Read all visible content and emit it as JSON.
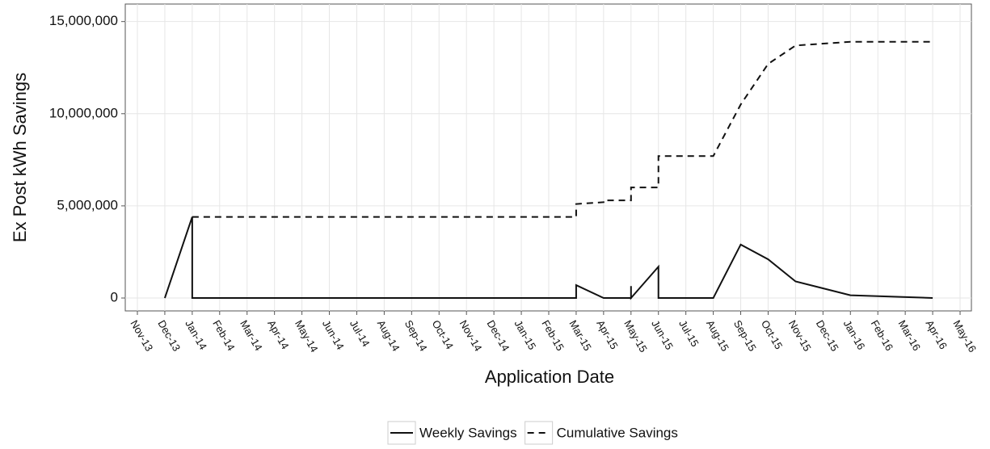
{
  "chart_data": {
    "type": "line",
    "xlabel": "Application Date",
    "ylabel": "Ex Post kWh Savings",
    "grid": true,
    "legend": "bottom",
    "xlim": [
      "2013-11",
      "2016-05"
    ],
    "xticks": [
      {
        "value": "2013-11",
        "label": "Nov-13"
      },
      {
        "value": "2013-12",
        "label": "Dec-13"
      },
      {
        "value": "2014-01",
        "label": "Jan-14"
      },
      {
        "value": "2014-02",
        "label": "Feb-14"
      },
      {
        "value": "2014-03",
        "label": "Mar-14"
      },
      {
        "value": "2014-04",
        "label": "Apr-14"
      },
      {
        "value": "2014-05",
        "label": "May-14"
      },
      {
        "value": "2014-06",
        "label": "Jun-14"
      },
      {
        "value": "2014-07",
        "label": "Jul-14"
      },
      {
        "value": "2014-08",
        "label": "Aug-14"
      },
      {
        "value": "2014-09",
        "label": "Sep-14"
      },
      {
        "value": "2014-10",
        "label": "Oct-14"
      },
      {
        "value": "2014-11",
        "label": "Nov-14"
      },
      {
        "value": "2014-12",
        "label": "Dec-14"
      },
      {
        "value": "2015-01",
        "label": "Jan-15"
      },
      {
        "value": "2015-02",
        "label": "Feb-15"
      },
      {
        "value": "2015-03",
        "label": "Mar-15"
      },
      {
        "value": "2015-04",
        "label": "Apr-15"
      },
      {
        "value": "2015-05",
        "label": "May-15"
      },
      {
        "value": "2015-06",
        "label": "Jun-15"
      },
      {
        "value": "2015-07",
        "label": "Jul-15"
      },
      {
        "value": "2015-08",
        "label": "Aug-15"
      },
      {
        "value": "2015-09",
        "label": "Sep-15"
      },
      {
        "value": "2015-10",
        "label": "Oct-15"
      },
      {
        "value": "2015-11",
        "label": "Nov-15"
      },
      {
        "value": "2015-12",
        "label": "Dec-15"
      },
      {
        "value": "2016-01",
        "label": "Jan-16"
      },
      {
        "value": "2016-02",
        "label": "Feb-16"
      },
      {
        "value": "2016-03",
        "label": "Mar-16"
      },
      {
        "value": "2016-04",
        "label": "Apr-16"
      },
      {
        "value": "2016-05",
        "label": "May-16"
      }
    ],
    "ylim": [
      -700000,
      15950000
    ],
    "yticks": [
      0,
      {
        "value": 5000000,
        "label": "5,000,000"
      },
      {
        "value": 10000000,
        "label": "10,000,000"
      },
      {
        "value": 15000000,
        "label": "15,000,000"
      }
    ],
    "series": [
      {
        "name": "Weekly Savings",
        "color": "#111111",
        "style": "solid",
        "x": [
          "2013-12",
          "2014-01",
          "2014-01",
          "2015-03",
          "2015-03",
          "2015-04",
          "2015-05",
          "2015-05",
          "2015-05",
          "2015-06",
          "2015-06",
          "2015-08",
          "2015-09",
          "2015-10",
          "2015-11",
          "2016-01",
          "2016-04"
        ],
        "values": [
          0,
          4400000,
          0,
          0,
          700000,
          0,
          0,
          650000,
          0,
          1700000,
          0,
          0,
          2900000,
          2100000,
          900000,
          150000,
          0
        ]
      },
      {
        "name": "Cumulative Savings",
        "color": "#111111",
        "style": "dashed",
        "x": [
          "2014-01",
          "2015-03",
          "2015-03",
          "2015-04",
          "2015-04",
          "2015-05",
          "2015-05",
          "2015-06",
          "2015-06",
          "2015-08",
          "2015-09",
          "2015-10",
          "2015-11",
          "2016-01",
          "2016-04"
        ],
        "values": [
          4400000,
          4400000,
          5100000,
          5200000,
          5300000,
          5300000,
          6000000,
          6000000,
          7700000,
          7700000,
          10500000,
          12700000,
          13700000,
          13900000,
          13900000
        ]
      }
    ]
  }
}
